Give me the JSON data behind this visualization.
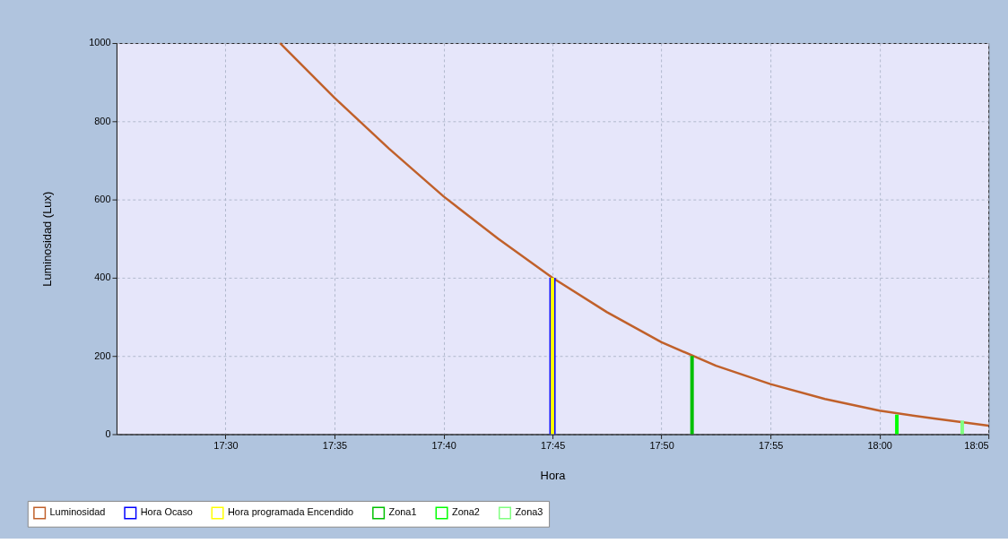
{
  "chart_data": {
    "type": "line",
    "xlabel": "Hora",
    "ylabel": "Luminosidad (Lux)",
    "xlim": [
      17.41667,
      18.08333
    ],
    "ylim": [
      0,
      1000
    ],
    "xticks": [
      {
        "value": 17.5,
        "label": "17:30"
      },
      {
        "value": 17.58333,
        "label": "17:35"
      },
      {
        "value": 17.66667,
        "label": "17:40"
      },
      {
        "value": 17.75,
        "label": "17:45"
      },
      {
        "value": 17.83333,
        "label": "17:50"
      },
      {
        "value": 17.91667,
        "label": "17:55"
      },
      {
        "value": 18.0,
        "label": "18:00"
      },
      {
        "value": 18.08333,
        "label": "18:05"
      }
    ],
    "yticks": [
      0,
      200,
      400,
      600,
      800,
      1000
    ],
    "grid": true,
    "legend": "bottom",
    "marker": "none",
    "line_style": "solid",
    "series": [
      {
        "name": "Luminosidad",
        "color": "#c0602a",
        "x": [
          17.54167,
          17.58333,
          17.625,
          17.66667,
          17.70833,
          17.75,
          17.79167,
          17.83333,
          17.875,
          17.91667,
          17.95833,
          18.0,
          18.04167,
          18.08333
        ],
        "values": [
          1000,
          860,
          730,
          608,
          500,
          400,
          312,
          235,
          175,
          128,
          90,
          60,
          40,
          22
        ]
      },
      {
        "name": "Hora Ocaso",
        "type": "bar",
        "color": "#0000ff",
        "x": [
          17.75
        ],
        "values": [
          400
        ]
      },
      {
        "name": "Hora programada Encendido",
        "type": "bar",
        "color": "#ffff00",
        "x": [
          17.75
        ],
        "values": [
          400
        ]
      },
      {
        "name": "Zona1",
        "type": "bar",
        "color": "#00c000",
        "x": [
          17.8567
        ],
        "values": [
          200
        ]
      },
      {
        "name": "Zona2",
        "type": "bar",
        "color": "#00ff00",
        "x": [
          18.0133
        ],
        "values": [
          50
        ]
      },
      {
        "name": "Zona3",
        "type": "bar",
        "color": "#80ff80",
        "x": [
          18.0633
        ],
        "values": [
          35
        ]
      }
    ]
  }
}
